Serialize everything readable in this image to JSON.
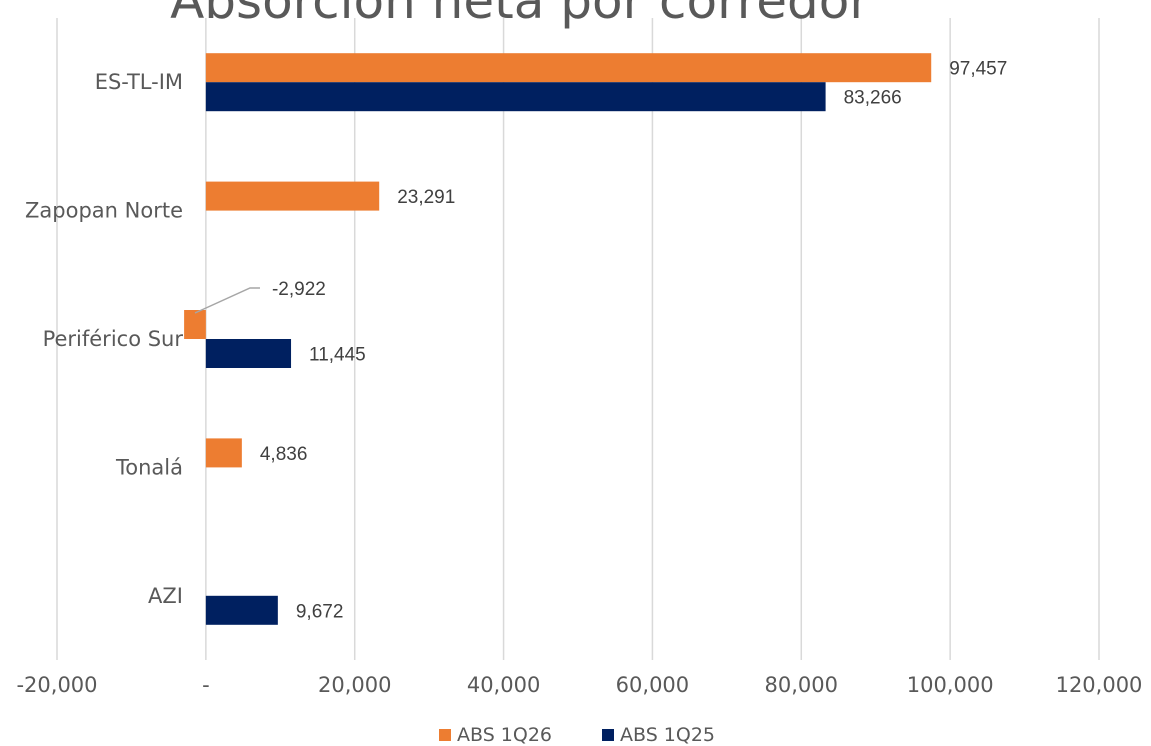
{
  "chart_data": {
    "type": "bar",
    "orientation": "horizontal",
    "title": "Absorción neta por corredor",
    "categories": [
      "ES-TL-IM",
      "Zapopan Norte",
      "Periférico Sur",
      "Tonalá",
      "AZI"
    ],
    "series": [
      {
        "name": "ABS 1Q26",
        "color": "#ed7d31",
        "values": [
          97457,
          23291,
          -2922,
          4836,
          null
        ],
        "labels": [
          "97,457",
          "23,291",
          "-2,922",
          "4,836",
          ""
        ]
      },
      {
        "name": "ABS 1Q25",
        "color": "#002060",
        "values": [
          83266,
          null,
          11445,
          null,
          9672
        ],
        "labels": [
          "83,266",
          "",
          "11,445",
          "",
          "9,672"
        ]
      }
    ],
    "xlim": [
      -20000,
      120000
    ],
    "xticks": [
      -20000,
      0,
      20000,
      40000,
      60000,
      80000,
      100000,
      120000
    ],
    "xtick_labels": [
      "-20,000",
      "-",
      "20,000",
      "40,000",
      "60,000",
      "80,000",
      "100,000",
      "120,000"
    ],
    "grid": "vertical",
    "legend_position": "bottom"
  }
}
